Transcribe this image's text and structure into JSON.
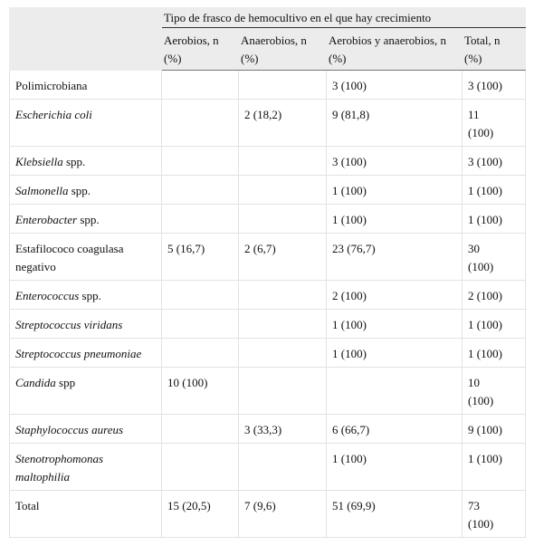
{
  "table": {
    "header": {
      "group": "Tipo de frasco de hemocultivo en el que hay crecimiento",
      "columns": [
        "Aerobios, n (%)",
        "Anaerobios, n (%)",
        "Aerobios y anaerobios, n (%)",
        "Total, n (%)"
      ]
    },
    "rows": [
      {
        "label": [
          {
            "text": "Polimicrobiana"
          }
        ],
        "cells": [
          null,
          null,
          "3 (100)",
          "3 (100)"
        ]
      },
      {
        "label": [
          {
            "text": "Escherichia coli",
            "italic": true
          }
        ],
        "cells": [
          null,
          "2 (18,2)",
          "9 (81,8)",
          "11 (100)"
        ]
      },
      {
        "label": [
          {
            "text": "Klebsiella",
            "italic": true
          },
          {
            "text": "spp."
          }
        ],
        "cells": [
          null,
          null,
          "3 (100)",
          "3 (100)"
        ]
      },
      {
        "label": [
          {
            "text": "Salmonella",
            "italic": true
          },
          {
            "text": "spp."
          }
        ],
        "cells": [
          null,
          null,
          "1 (100)",
          "1 (100)"
        ]
      },
      {
        "label": [
          {
            "text": "Enterobacter",
            "italic": true
          },
          {
            "text": "spp."
          }
        ],
        "cells": [
          null,
          null,
          "1 (100)",
          "1 (100)"
        ]
      },
      {
        "label": [
          {
            "text": "Estafilococo coagulasa negativo"
          }
        ],
        "cells": [
          "5 (16,7)",
          "2 (6,7)",
          "23 (76,7)",
          "30 (100)"
        ]
      },
      {
        "label": [
          {
            "text": "Enterococcus",
            "italic": true
          },
          {
            "text": "spp."
          }
        ],
        "cells": [
          null,
          null,
          "2 (100)",
          "2 (100)"
        ]
      },
      {
        "label": [
          {
            "text": "Streptococcus viridans",
            "italic": true
          }
        ],
        "cells": [
          null,
          null,
          "1 (100)",
          "1 (100)"
        ]
      },
      {
        "label": [
          {
            "text": "Streptococcus pneumoniae",
            "italic": true
          }
        ],
        "cells": [
          null,
          null,
          "1 (100)",
          "1 (100)"
        ]
      },
      {
        "label": [
          {
            "text": "Candida",
            "italic": true
          },
          {
            "text": "spp"
          }
        ],
        "cells": [
          "10 (100)",
          null,
          null,
          "10 (100)"
        ]
      },
      {
        "label": [
          {
            "text": "Staphylococcus aureus",
            "italic": true
          }
        ],
        "cells": [
          null,
          "3 (33,3)",
          "6 (66,7)",
          "9 (100)"
        ]
      },
      {
        "label": [
          {
            "text": "Stenotrophomonas maltophilia",
            "italic": true
          }
        ],
        "cells": [
          null,
          null,
          "1 (100)",
          "1 (100)"
        ]
      },
      {
        "label": [
          {
            "text": "Total"
          }
        ],
        "cells": [
          "15 (20,5)",
          "7 (9,6)",
          "51 (69,9)",
          "73 (100)"
        ]
      }
    ]
  }
}
